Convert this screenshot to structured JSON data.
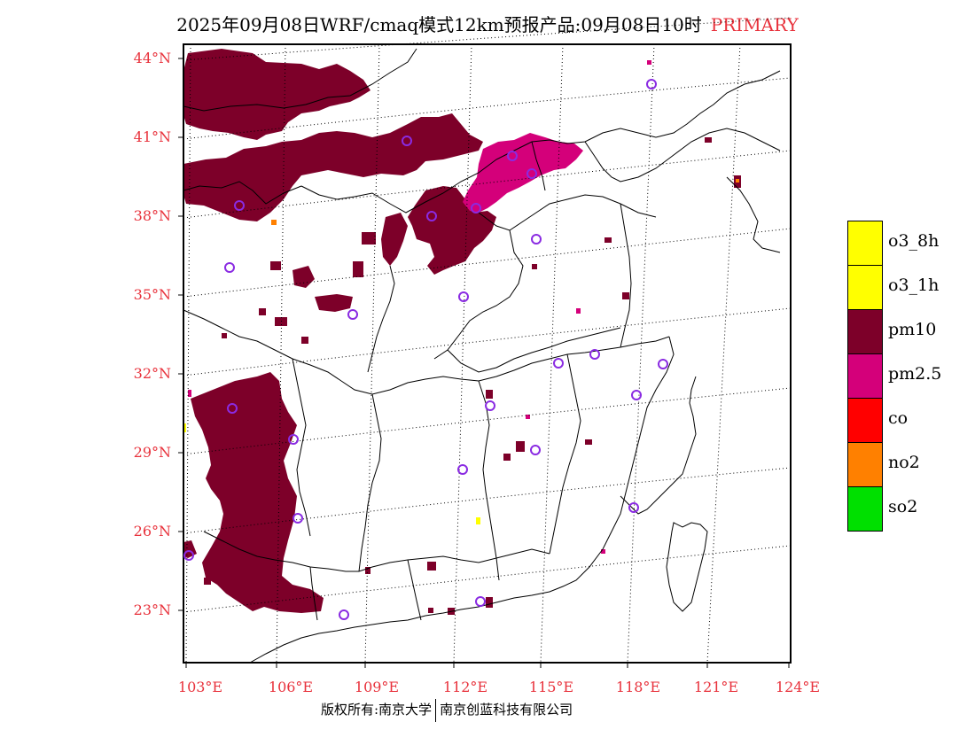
{
  "header": {
    "title": "2025年09月08日WRF/cmaq模式12km预报产品:09月08日10时",
    "tag": "PRIMARY"
  },
  "axes": {
    "lat_labels": [
      "44°N",
      "41°N",
      "38°N",
      "35°N",
      "32°N",
      "29°N",
      "26°N",
      "23°N"
    ],
    "lon_labels": [
      "103°E",
      "106°E",
      "109°E",
      "112°E",
      "115°E",
      "118°E",
      "121°E",
      "124°E"
    ],
    "label_color": "#e8323c"
  },
  "legend": {
    "items": [
      {
        "label": "o3_8h",
        "color": "#ffff00"
      },
      {
        "label": "o3_1h",
        "color": "#ffff00"
      },
      {
        "label": "pm10",
        "color": "#7d0029"
      },
      {
        "label": "pm2.5",
        "color": "#d4007a"
      },
      {
        "label": "co",
        "color": "#ff0000"
      },
      {
        "label": "no2",
        "color": "#ff8000"
      },
      {
        "label": "so2",
        "color": "#00e000"
      }
    ]
  },
  "footer": {
    "copyright": "版权所有:南京大学",
    "company": "南京创蓝科技有限公司"
  },
  "colors": {
    "pm10": "#7d0029",
    "pm25": "#d4007a",
    "station_marker": "#8a2be2",
    "o3": "#ffff00"
  }
}
